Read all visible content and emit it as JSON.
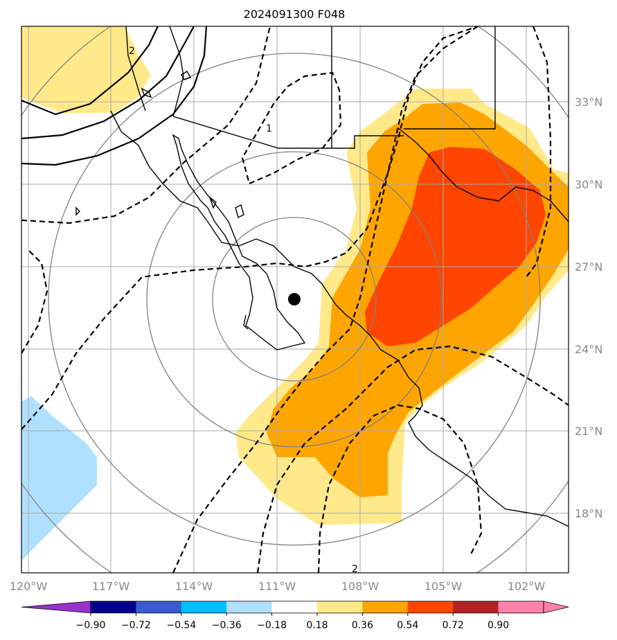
{
  "title": "2024091300 F048",
  "map": {
    "lat_labels": [
      "33°N",
      "30°N",
      "27°N",
      "24°N",
      "21°N",
      "18°N"
    ],
    "lon_labels": [
      "120°W",
      "117°W",
      "114°W",
      "111°W",
      "108°W",
      "105°W",
      "102°W"
    ],
    "contour_labels": [
      "2",
      "1",
      "2"
    ]
  },
  "colorbar": {
    "labels": [
      "−0.90",
      "−0.72",
      "−0.54",
      "−0.36",
      "−0.18",
      "0.18",
      "0.36",
      "0.54",
      "0.72",
      "0.90"
    ],
    "colors": [
      "#9932CC",
      "#00008B",
      "#3A5BD0",
      "#00BFFF",
      "#B0E0FF",
      "#FFFFFF",
      "#FFE98A",
      "#FFA500",
      "#FF4500",
      "#B22222",
      "#FF82AB",
      "#FF82AB"
    ]
  },
  "colors": {
    "shade_level1": "#FFE98A",
    "shade_level2": "#FFA500",
    "shade_level3": "#FF4500",
    "shade_negative": "#B0E0FF",
    "grid": "#AAAAAA",
    "range_rings": "#808080"
  }
}
